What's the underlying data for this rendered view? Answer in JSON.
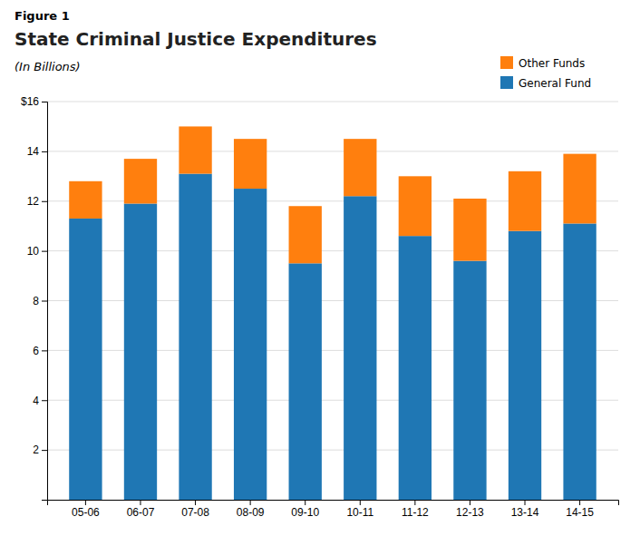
{
  "chart_data": {
    "type": "bar",
    "stacked": true,
    "annotations": [
      "Figure 1"
    ],
    "title": "State Criminal Justice Expenditures",
    "subtitle": "(In Billions)",
    "categories": [
      "05-06",
      "06-07",
      "07-08",
      "08-09",
      "09-10",
      "10-11",
      "11-12",
      "12-13",
      "13-14",
      "14-15"
    ],
    "series": [
      {
        "name": "General Fund",
        "values": [
          11.3,
          11.9,
          13.1,
          12.5,
          9.5,
          12.2,
          10.6,
          9.6,
          10.8,
          11.1
        ]
      },
      {
        "name": "Other Funds",
        "values": [
          1.5,
          1.8,
          1.9,
          2.0,
          2.3,
          2.3,
          2.4,
          2.5,
          2.4,
          2.8
        ]
      }
    ],
    "ylim": [
      0,
      16
    ],
    "yticks": [
      2,
      4,
      6,
      8,
      10,
      12,
      14,
      {
        "value": 16,
        "label": "$16"
      }
    ],
    "grid": true,
    "legend": "upper right"
  }
}
